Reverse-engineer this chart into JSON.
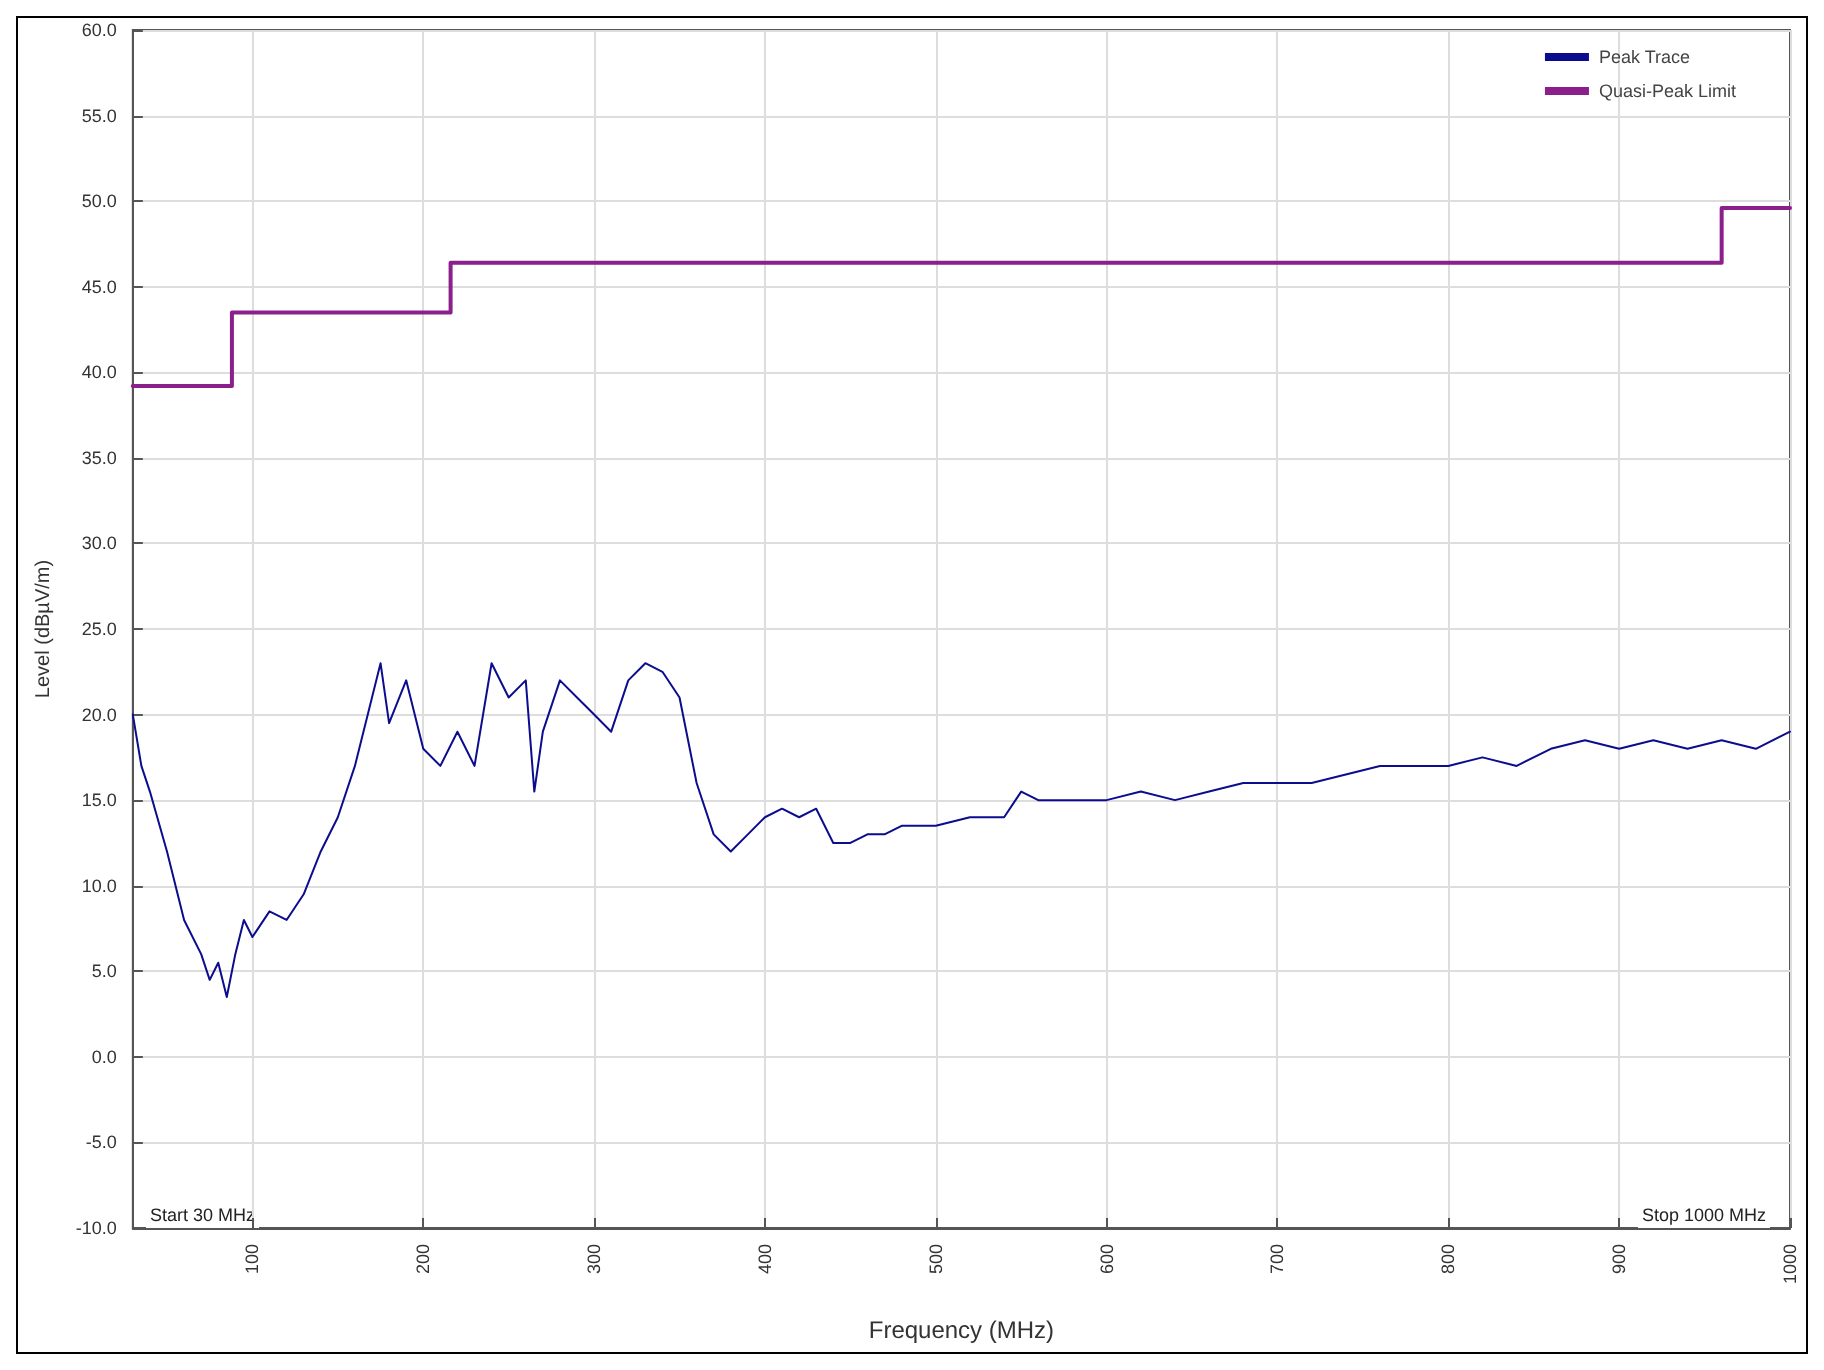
{
  "chart_data": {
    "type": "line",
    "xlabel": "Frequency (MHz)",
    "ylabel": "Level (dBµV/m)",
    "xlim": [
      30,
      1000
    ],
    "xticks": [
      100,
      200,
      300,
      400,
      500,
      600,
      700,
      800,
      900,
      1000
    ],
    "ylim": [
      -10,
      60
    ],
    "yticks": [
      {
        "value": -10,
        "label": "-10.0"
      },
      {
        "value": -5,
        "label": "-5.0"
      },
      {
        "value": 0,
        "label": "0.0"
      },
      {
        "value": 5,
        "label": "5.0"
      },
      {
        "value": 10,
        "label": "10.0"
      },
      {
        "value": 15,
        "label": "15.0"
      },
      {
        "value": 20,
        "label": "20.0"
      },
      {
        "value": 25,
        "label": "25.0"
      },
      {
        "value": 30,
        "label": "30.0"
      },
      {
        "value": 35,
        "label": "35.0"
      },
      {
        "value": 40,
        "label": "40.0"
      },
      {
        "value": 45,
        "label": "45.0"
      },
      {
        "value": 50,
        "label": "50.0"
      },
      {
        "value": 55,
        "label": "55.0"
      },
      {
        "value": 60,
        "label": "60.0"
      }
    ],
    "grid": true,
    "legend": "top right",
    "marker": "none",
    "line_style": "solid",
    "annotations": [
      "Start 30 MHz",
      "Stop 1000 MHz"
    ],
    "series": [
      {
        "name": "Peak Trace",
        "color": "#0c0c8e",
        "x": [
          30,
          35,
          40,
          50,
          60,
          70,
          75,
          80,
          85,
          90,
          95,
          100,
          110,
          120,
          130,
          140,
          150,
          160,
          170,
          175,
          180,
          190,
          200,
          210,
          220,
          230,
          240,
          250,
          260,
          265,
          270,
          280,
          290,
          300,
          310,
          320,
          330,
          340,
          350,
          360,
          370,
          380,
          390,
          400,
          410,
          420,
          430,
          440,
          450,
          460,
          470,
          480,
          490,
          500,
          520,
          540,
          550,
          560,
          580,
          600,
          620,
          640,
          660,
          680,
          700,
          720,
          740,
          760,
          780,
          800,
          820,
          840,
          860,
          880,
          900,
          920,
          940,
          960,
          980,
          1000
        ],
        "values": [
          20,
          17,
          15.5,
          12,
          8,
          6,
          4.5,
          5.5,
          3.5,
          6,
          8,
          7,
          8.5,
          8,
          9.5,
          12,
          14,
          17,
          21,
          23,
          19.5,
          22,
          18,
          17,
          19,
          17,
          23,
          21,
          22,
          15.5,
          19,
          22,
          21,
          20,
          19,
          22,
          23,
          22.5,
          21,
          16,
          13,
          12,
          13,
          14,
          14.5,
          14,
          14.5,
          12.5,
          12.5,
          13,
          13,
          13.5,
          13.5,
          13.5,
          14,
          14,
          15.5,
          15,
          15,
          15,
          15.5,
          15,
          15.5,
          16,
          16,
          16,
          16.5,
          17,
          17,
          17,
          17.5,
          17,
          18,
          18.5,
          18,
          18.5,
          18,
          18.5,
          18,
          19
        ]
      },
      {
        "name": "Quasi-Peak Limit",
        "type": "step",
        "color": "#8b1f8b",
        "x": [
          30,
          88,
          88,
          216,
          216,
          960,
          960,
          1000
        ],
        "values": [
          39.2,
          39.2,
          43.5,
          43.5,
          46.4,
          46.4,
          49.6,
          49.6
        ]
      }
    ]
  }
}
